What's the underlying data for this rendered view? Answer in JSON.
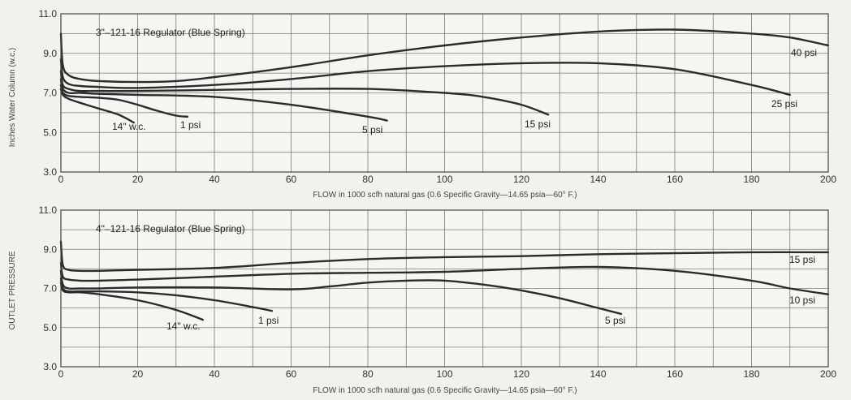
{
  "chart_data": [
    {
      "type": "line",
      "title": "3\"–121-16 Regulator (Blue Spring)",
      "xlabel": "FLOW in 1000 scfh natural gas (0.6 Specific Gravity—14.65 psia—60° F.)",
      "ylabel": "Inches Water Column (w.c.)",
      "xlim": [
        0,
        200
      ],
      "ylim": [
        3.0,
        11.0
      ],
      "xticks": [
        "0",
        "20",
        "40",
        "60",
        "80",
        "100",
        "120",
        "140",
        "160",
        "180",
        "200"
      ],
      "yticks": [
        "3.0",
        "5.0",
        "7.0",
        "9.0",
        "11.0"
      ],
      "grid": true,
      "series": [
        {
          "name": "40 psi",
          "x": [
            0,
            0.5,
            2,
            5,
            10,
            20,
            30,
            40,
            60,
            80,
            100,
            120,
            140,
            160,
            180,
            190,
            200
          ],
          "y": [
            10.0,
            8.4,
            7.9,
            7.7,
            7.6,
            7.55,
            7.6,
            7.8,
            8.3,
            8.9,
            9.4,
            9.8,
            10.1,
            10.2,
            10.0,
            9.8,
            9.4
          ]
        },
        {
          "name": "25 psi",
          "x": [
            0,
            0.5,
            2,
            5,
            10,
            20,
            40,
            60,
            80,
            100,
            120,
            140,
            160,
            180,
            190
          ],
          "y": [
            8.7,
            7.8,
            7.45,
            7.35,
            7.3,
            7.25,
            7.4,
            7.7,
            8.1,
            8.35,
            8.5,
            8.5,
            8.2,
            7.4,
            6.9
          ]
        },
        {
          "name": "15 psi",
          "x": [
            0,
            0.5,
            2,
            5,
            10,
            20,
            40,
            60,
            80,
            100,
            110,
            120,
            127
          ],
          "y": [
            8.1,
            7.4,
            7.2,
            7.1,
            7.1,
            7.1,
            7.15,
            7.2,
            7.2,
            7.0,
            6.8,
            6.4,
            5.9
          ]
        },
        {
          "name": "5 psi",
          "x": [
            0,
            0.5,
            2,
            5,
            10,
            20,
            40,
            60,
            80,
            85
          ],
          "y": [
            7.7,
            7.2,
            7.0,
            7.0,
            6.95,
            6.9,
            6.8,
            6.4,
            5.8,
            5.6
          ]
        },
        {
          "name": "1 psi",
          "x": [
            0,
            0.5,
            2,
            5,
            10,
            15,
            20,
            25,
            30,
            33
          ],
          "y": [
            7.4,
            7.0,
            6.85,
            6.8,
            6.75,
            6.65,
            6.4,
            6.1,
            5.85,
            5.8
          ]
        },
        {
          "name": "14\" w.c.",
          "x": [
            0,
            0.5,
            2,
            5,
            10,
            15,
            19
          ],
          "y": [
            7.2,
            6.9,
            6.7,
            6.5,
            6.2,
            5.9,
            5.5
          ]
        }
      ],
      "labels": [
        "40 psi",
        "25 psi",
        "15 psi",
        "5 psi",
        "1 psi",
        "14\" w.c."
      ]
    },
    {
      "type": "line",
      "title": "4\"–121-16 Regulator (Blue Spring)",
      "xlabel": "FLOW in 1000 scfh natural gas (0.6 Specific Gravity—14.65 psia—60° F.)",
      "ylabel": "OUTLET PRESSURE",
      "xlim": [
        0,
        200
      ],
      "ylim": [
        3.0,
        11.0
      ],
      "xticks": [
        "0",
        "20",
        "40",
        "60",
        "80",
        "100",
        "120",
        "140",
        "160",
        "180",
        "200"
      ],
      "yticks": [
        "3.0",
        "5.0",
        "7.0",
        "9.0",
        "11.0"
      ],
      "grid": true,
      "series": [
        {
          "name": "15 psi",
          "x": [
            0,
            0.5,
            2,
            5,
            10,
            20,
            40,
            60,
            80,
            100,
            120,
            140,
            160,
            180,
            200
          ],
          "y": [
            9.4,
            8.2,
            7.95,
            7.9,
            7.9,
            7.95,
            8.05,
            8.3,
            8.5,
            8.6,
            8.65,
            8.75,
            8.8,
            8.85,
            8.85
          ]
        },
        {
          "name": "10 psi",
          "x": [
            0,
            0.5,
            2,
            5,
            10,
            20,
            40,
            60,
            80,
            100,
            120,
            140,
            160,
            180,
            190,
            200
          ],
          "y": [
            8.3,
            7.6,
            7.45,
            7.4,
            7.4,
            7.45,
            7.6,
            7.75,
            7.8,
            7.85,
            8.0,
            8.1,
            7.9,
            7.4,
            7.0,
            6.7
          ]
        },
        {
          "name": "5 psi",
          "x": [
            0,
            0.5,
            2,
            5,
            10,
            20,
            40,
            60,
            70,
            80,
            90,
            100,
            110,
            120,
            130,
            140,
            146
          ],
          "y": [
            7.9,
            7.2,
            7.0,
            7.0,
            7.0,
            7.05,
            7.05,
            6.95,
            7.1,
            7.3,
            7.4,
            7.4,
            7.2,
            6.9,
            6.5,
            6.0,
            5.7
          ]
        },
        {
          "name": "1 psi",
          "x": [
            0,
            0.5,
            2,
            5,
            10,
            20,
            30,
            40,
            50,
            55
          ],
          "y": [
            7.5,
            7.0,
            6.85,
            6.85,
            6.85,
            6.8,
            6.65,
            6.4,
            6.05,
            5.85
          ]
        },
        {
          "name": "14\" w.c.",
          "x": [
            0,
            0.5,
            2,
            5,
            10,
            20,
            30,
            37
          ],
          "y": [
            7.3,
            6.9,
            6.8,
            6.8,
            6.7,
            6.4,
            5.9,
            5.4
          ]
        }
      ],
      "labels": [
        "15 psi",
        "10 psi",
        "5 psi",
        "1 psi",
        "14\" w.c."
      ]
    }
  ]
}
